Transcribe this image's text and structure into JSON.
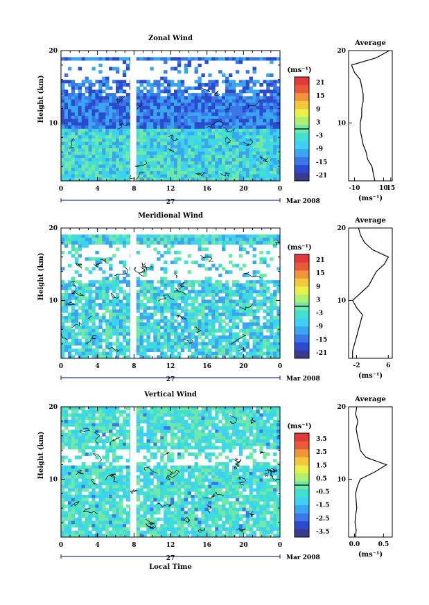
{
  "common": {
    "xlabel": "Local Time",
    "date_label": "Mar 2008",
    "day_label": "27",
    "unit": "(ms⁻¹)",
    "avg_title": "Average",
    "ylabel": "Height (km)"
  },
  "colors": {
    "scale": [
      "#3b3b8c",
      "#2a4bd0",
      "#3a78e8",
      "#3aa6f0",
      "#3fd0f5",
      "#3fe0d0",
      "#6fe8a8",
      "#aef070",
      "#e8f04a",
      "#f5c83a",
      "#f0963a",
      "#e85a3a",
      "#e03a3a"
    ]
  },
  "chart_data": [
    {
      "type": "heatmap",
      "title": "Zonal Wind",
      "ylabel": "Height (km)",
      "xlabel": "",
      "x_ticks": [
        "0",
        "4",
        "8",
        "12",
        "16",
        "20",
        "0"
      ],
      "y_ticks": [
        "20",
        "10"
      ],
      "colorbar_ticks": [
        "21",
        "15",
        "9",
        "3",
        "-3",
        "-9",
        "-15",
        "-21"
      ],
      "zero_value": 0,
      "average": {
        "title": "Average",
        "xlabel": "(ms⁻¹)",
        "x_ticks": [
          "-10",
          "10",
          "15"
        ],
        "y_ticks": [
          "20",
          "10"
        ],
        "xlim": [
          -14,
          16
        ],
        "heights": [
          2,
          3,
          4,
          5,
          6,
          7,
          8,
          9,
          10,
          11,
          12,
          13,
          14,
          15,
          16,
          17,
          18,
          19,
          20
        ],
        "values": [
          4,
          3,
          2,
          -1,
          -2,
          -4,
          -5,
          -6,
          -6,
          -5,
          -5,
          -4,
          -4,
          -5,
          -6,
          -10,
          -12,
          5,
          14
        ]
      }
    },
    {
      "type": "heatmap",
      "title": "Meridional Wind",
      "ylabel": "Height (km)",
      "xlabel": "",
      "x_ticks": [
        "0",
        "4",
        "8",
        "12",
        "16",
        "20",
        "0"
      ],
      "y_ticks": [
        "20",
        "10"
      ],
      "colorbar_ticks": [
        "21",
        "15",
        "9",
        "3",
        "-3",
        "-9",
        "-15",
        "-21"
      ],
      "zero_value": 0,
      "average": {
        "title": "Average",
        "xlabel": "(ms⁻¹)",
        "x_ticks": [
          "-2",
          "6"
        ],
        "y_ticks": [
          "20",
          "10"
        ],
        "xlim": [
          -4,
          7
        ],
        "heights": [
          2,
          3,
          4,
          5,
          6,
          7,
          8,
          9,
          10,
          11,
          12,
          13,
          14,
          15,
          16,
          17,
          18,
          19,
          20
        ],
        "values": [
          -3,
          -3,
          -2.5,
          -2,
          -1.5,
          -1,
          -0.5,
          -2,
          -3,
          -1,
          1,
          2,
          3,
          5,
          6,
          2,
          0,
          -1,
          -1.5
        ]
      }
    },
    {
      "type": "heatmap",
      "title": "Vertical Wind",
      "ylabel": "Height (km)",
      "xlabel": "Local Time",
      "x_ticks": [
        "0",
        "4",
        "8",
        "12",
        "16",
        "20",
        "0"
      ],
      "y_ticks": [
        "20",
        "10"
      ],
      "colorbar_ticks": [
        "3.5",
        "2.5",
        "1.5",
        "0.5",
        "-0.5",
        "-1.5",
        "-2.5",
        "-3.5"
      ],
      "zero_value": 0,
      "average": {
        "title": "Average",
        "xlabel": "(ms⁻¹)",
        "x_ticks": [
          "0.0",
          "0.5"
        ],
        "y_ticks": [
          "20",
          "10"
        ],
        "xlim": [
          -0.1,
          0.65
        ],
        "heights": [
          2,
          3,
          4,
          5,
          6,
          7,
          8,
          9,
          10,
          11,
          12,
          13,
          14,
          15,
          16,
          17,
          18,
          19,
          20
        ],
        "values": [
          0.02,
          0.03,
          0.01,
          0.02,
          0.04,
          0.03,
          0.02,
          0.05,
          0.1,
          0.35,
          0.55,
          0.2,
          0.1,
          0.08,
          0.05,
          0.03,
          0.06,
          0.02,
          0.04
        ]
      }
    }
  ]
}
